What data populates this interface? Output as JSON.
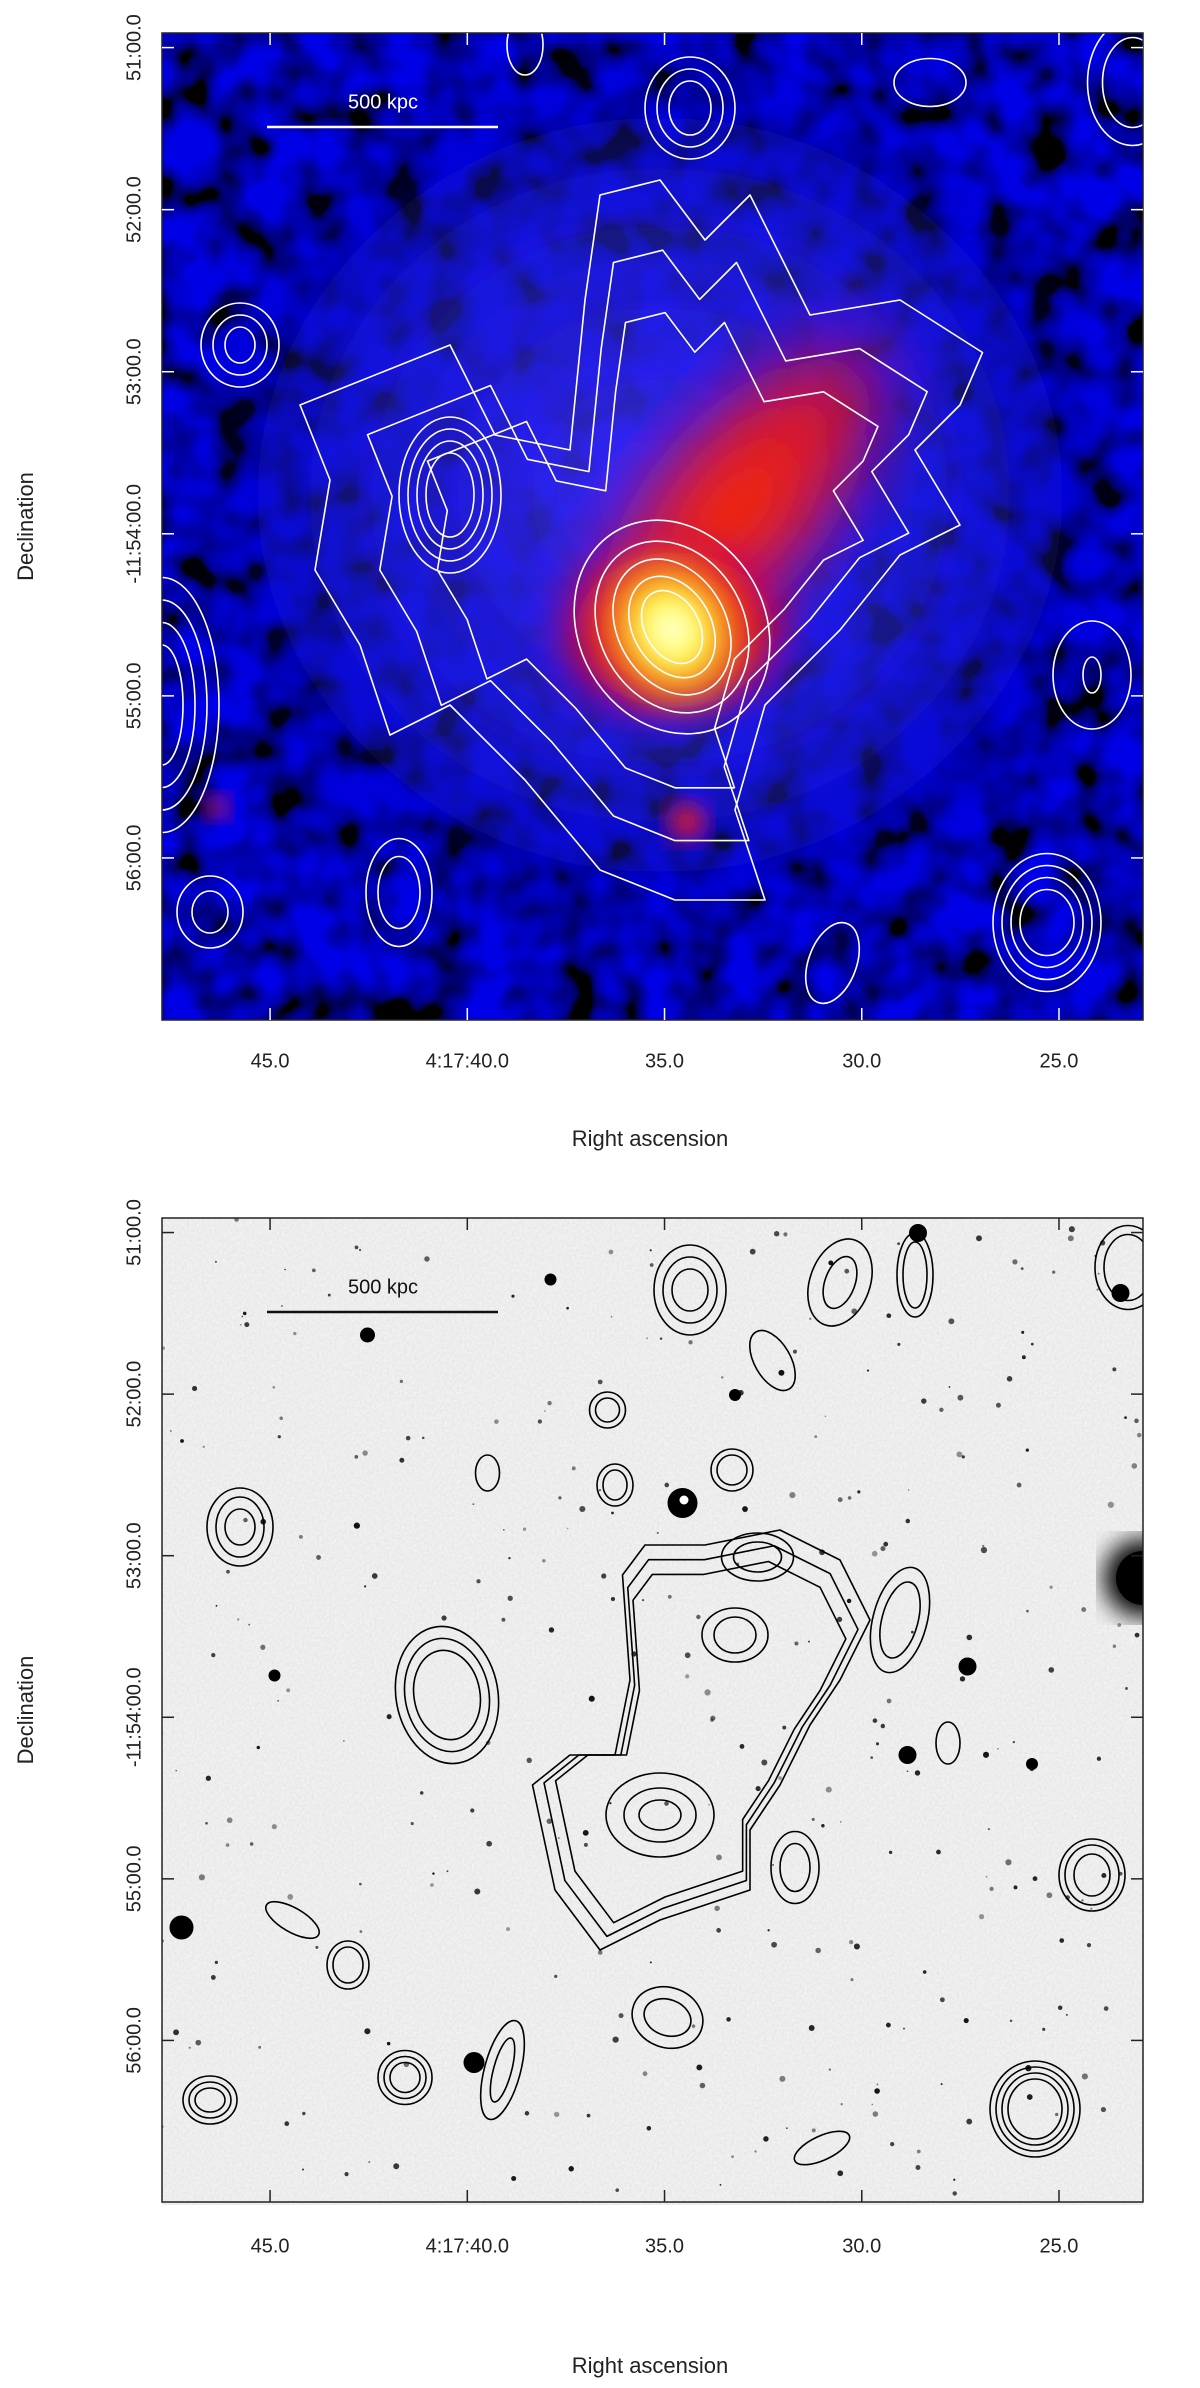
{
  "chart_data": [
    {
      "type": "image",
      "colormap": "heat",
      "contour_color": "#ffffff",
      "scale_bar": "500 kpc",
      "xlabel": "Right ascension",
      "ylabel": "Declination",
      "xlim": [
        47.74,
        22.87
      ],
      "ylim": [
        57.0,
        50.91
      ],
      "xticks": [
        {
          "value": 45,
          "label": "45.0"
        },
        {
          "value": 40,
          "label": "4:17:40.0"
        },
        {
          "value": 35,
          "label": "35.0"
        },
        {
          "value": 30,
          "label": "30.0"
        },
        {
          "value": 25,
          "label": "25.0"
        }
      ],
      "yticks": [
        {
          "value": 51,
          "label": "51:00.0"
        },
        {
          "value": 52,
          "label": "52:00.0"
        },
        {
          "value": 53,
          "label": "53:00.0"
        },
        {
          "value": 54,
          "label": "-11:54:00.0"
        },
        {
          "value": 55,
          "label": "55:00.0"
        },
        {
          "value": 56,
          "label": "56:00.0"
        }
      ]
    },
    {
      "type": "image",
      "colormap": "gray_inverted",
      "contour_color": "#000000",
      "scale_bar": "500 kpc",
      "xlabel": "Right ascension",
      "ylabel": "Declination",
      "xlim": [
        47.74,
        22.87
      ],
      "ylim": [
        57.0,
        50.91
      ],
      "xticks": [
        {
          "value": 45,
          "label": "45.0"
        },
        {
          "value": 40,
          "label": "4:17:40.0"
        },
        {
          "value": 35,
          "label": "35.0"
        },
        {
          "value": 30,
          "label": "30.0"
        },
        {
          "value": 25,
          "label": "25.0"
        }
      ],
      "yticks": [
        {
          "value": 51,
          "label": "51:00.0"
        },
        {
          "value": 52,
          "label": "52:00.0"
        },
        {
          "value": 53,
          "label": "53:00.0"
        },
        {
          "value": 54,
          "label": "-11:54:00.0"
        },
        {
          "value": 55,
          "label": "55:00.0"
        },
        {
          "value": 56,
          "label": "56:00.0"
        }
      ]
    }
  ]
}
